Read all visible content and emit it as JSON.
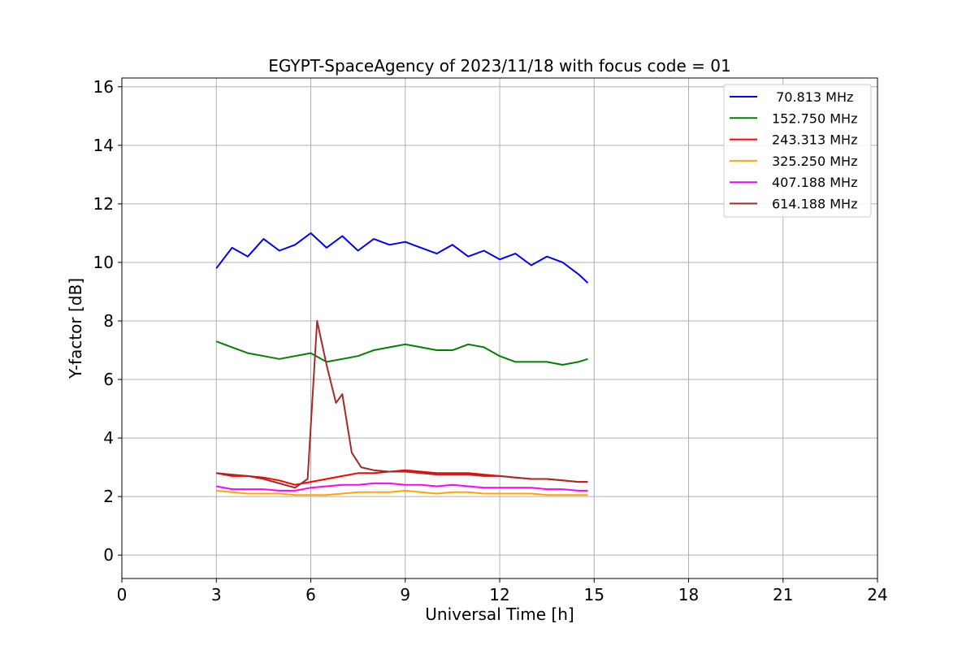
{
  "chart_data": {
    "type": "line",
    "title": "EGYPT-SpaceAgency of 2023/11/18 with focus code = 01",
    "xlabel": "Universal Time [h]",
    "ylabel": "Y-factor [dB]",
    "xlim": [
      0,
      24
    ],
    "ylim": [
      -0.8,
      16.3
    ],
    "xticks": [
      0,
      3,
      6,
      9,
      12,
      15,
      18,
      21,
      24
    ],
    "yticks": [
      0,
      2,
      4,
      6,
      8,
      10,
      12,
      14,
      16
    ],
    "grid": true,
    "legend_position": "top-right",
    "series": [
      {
        "name": " 70.813 MHz",
        "color": "#0000ff",
        "x": [
          3.0,
          3.5,
          4.0,
          4.5,
          5.0,
          5.5,
          6.0,
          6.5,
          7.0,
          7.5,
          8.0,
          8.5,
          9.0,
          9.5,
          10.0,
          10.5,
          11.0,
          11.5,
          12.0,
          12.5,
          13.0,
          13.5,
          14.0,
          14.5,
          14.8
        ],
        "y": [
          9.8,
          10.5,
          10.2,
          10.8,
          10.4,
          10.6,
          11.0,
          10.5,
          10.9,
          10.4,
          10.8,
          10.6,
          10.7,
          10.5,
          10.3,
          10.6,
          10.2,
          10.4,
          10.1,
          10.3,
          9.9,
          10.2,
          10.0,
          9.6,
          9.3
        ]
      },
      {
        "name": "152.750 MHz",
        "color": "#008000",
        "x": [
          3.0,
          3.5,
          4.0,
          4.5,
          5.0,
          5.5,
          6.0,
          6.5,
          7.0,
          7.5,
          8.0,
          8.5,
          9.0,
          9.5,
          10.0,
          10.5,
          11.0,
          11.5,
          12.0,
          12.5,
          13.0,
          13.5,
          14.0,
          14.5,
          14.8
        ],
        "y": [
          7.3,
          7.1,
          6.9,
          6.8,
          6.7,
          6.8,
          6.9,
          6.6,
          6.7,
          6.8,
          7.0,
          7.1,
          7.2,
          7.1,
          7.0,
          7.0,
          7.2,
          7.1,
          6.8,
          6.6,
          6.6,
          6.6,
          6.5,
          6.6,
          6.7
        ]
      },
      {
        "name": "243.313 MHz",
        "color": "#ff0000",
        "x": [
          3.0,
          3.5,
          4.0,
          4.5,
          5.0,
          5.5,
          6.0,
          6.5,
          7.0,
          7.5,
          8.0,
          8.5,
          9.0,
          9.5,
          10.0,
          10.5,
          11.0,
          11.5,
          12.0,
          12.5,
          13.0,
          13.5,
          14.0,
          14.5,
          14.8
        ],
        "y": [
          2.8,
          2.7,
          2.7,
          2.65,
          2.55,
          2.4,
          2.5,
          2.6,
          2.7,
          2.8,
          2.8,
          2.85,
          2.9,
          2.85,
          2.8,
          2.8,
          2.8,
          2.75,
          2.7,
          2.65,
          2.6,
          2.6,
          2.55,
          2.5,
          2.5
        ]
      },
      {
        "name": "325.250 MHz",
        "color": "#ffa500",
        "x": [
          3.0,
          3.5,
          4.0,
          4.5,
          5.0,
          5.5,
          6.0,
          6.5,
          7.0,
          7.5,
          8.0,
          8.5,
          9.0,
          9.5,
          10.0,
          10.5,
          11.0,
          11.5,
          12.0,
          12.5,
          13.0,
          13.5,
          14.0,
          14.5,
          14.8
        ],
        "y": [
          2.2,
          2.15,
          2.1,
          2.1,
          2.1,
          2.05,
          2.05,
          2.05,
          2.1,
          2.15,
          2.15,
          2.15,
          2.2,
          2.15,
          2.1,
          2.15,
          2.15,
          2.1,
          2.1,
          2.1,
          2.1,
          2.05,
          2.05,
          2.05,
          2.05
        ]
      },
      {
        "name": "407.188 MHz",
        "color": "#ff00ff",
        "x": [
          3.0,
          3.5,
          4.0,
          4.5,
          5.0,
          5.5,
          6.0,
          6.5,
          7.0,
          7.5,
          8.0,
          8.5,
          9.0,
          9.5,
          10.0,
          10.5,
          11.0,
          11.5,
          12.0,
          12.5,
          13.0,
          13.5,
          14.0,
          14.5,
          14.8
        ],
        "y": [
          2.35,
          2.25,
          2.25,
          2.25,
          2.2,
          2.2,
          2.3,
          2.35,
          2.4,
          2.4,
          2.45,
          2.45,
          2.4,
          2.4,
          2.35,
          2.4,
          2.35,
          2.3,
          2.3,
          2.3,
          2.3,
          2.25,
          2.25,
          2.2,
          2.2
        ]
      },
      {
        "name": "614.188 MHz",
        "color": "#a52a2a",
        "x": [
          3.0,
          3.5,
          4.0,
          4.5,
          5.0,
          5.5,
          5.9,
          6.2,
          6.5,
          6.8,
          7.0,
          7.3,
          7.6,
          8.0,
          8.5,
          9.0,
          9.5,
          10.0,
          10.5,
          11.0,
          11.5,
          12.0,
          12.5,
          13.0,
          13.5,
          14.0,
          14.5,
          14.8
        ],
        "y": [
          2.8,
          2.75,
          2.7,
          2.6,
          2.45,
          2.3,
          2.6,
          8.0,
          6.5,
          5.2,
          5.5,
          3.5,
          3.0,
          2.9,
          2.85,
          2.85,
          2.8,
          2.75,
          2.75,
          2.75,
          2.7,
          2.7,
          2.65,
          2.6,
          2.6,
          2.55,
          2.5,
          2.5
        ]
      }
    ]
  }
}
